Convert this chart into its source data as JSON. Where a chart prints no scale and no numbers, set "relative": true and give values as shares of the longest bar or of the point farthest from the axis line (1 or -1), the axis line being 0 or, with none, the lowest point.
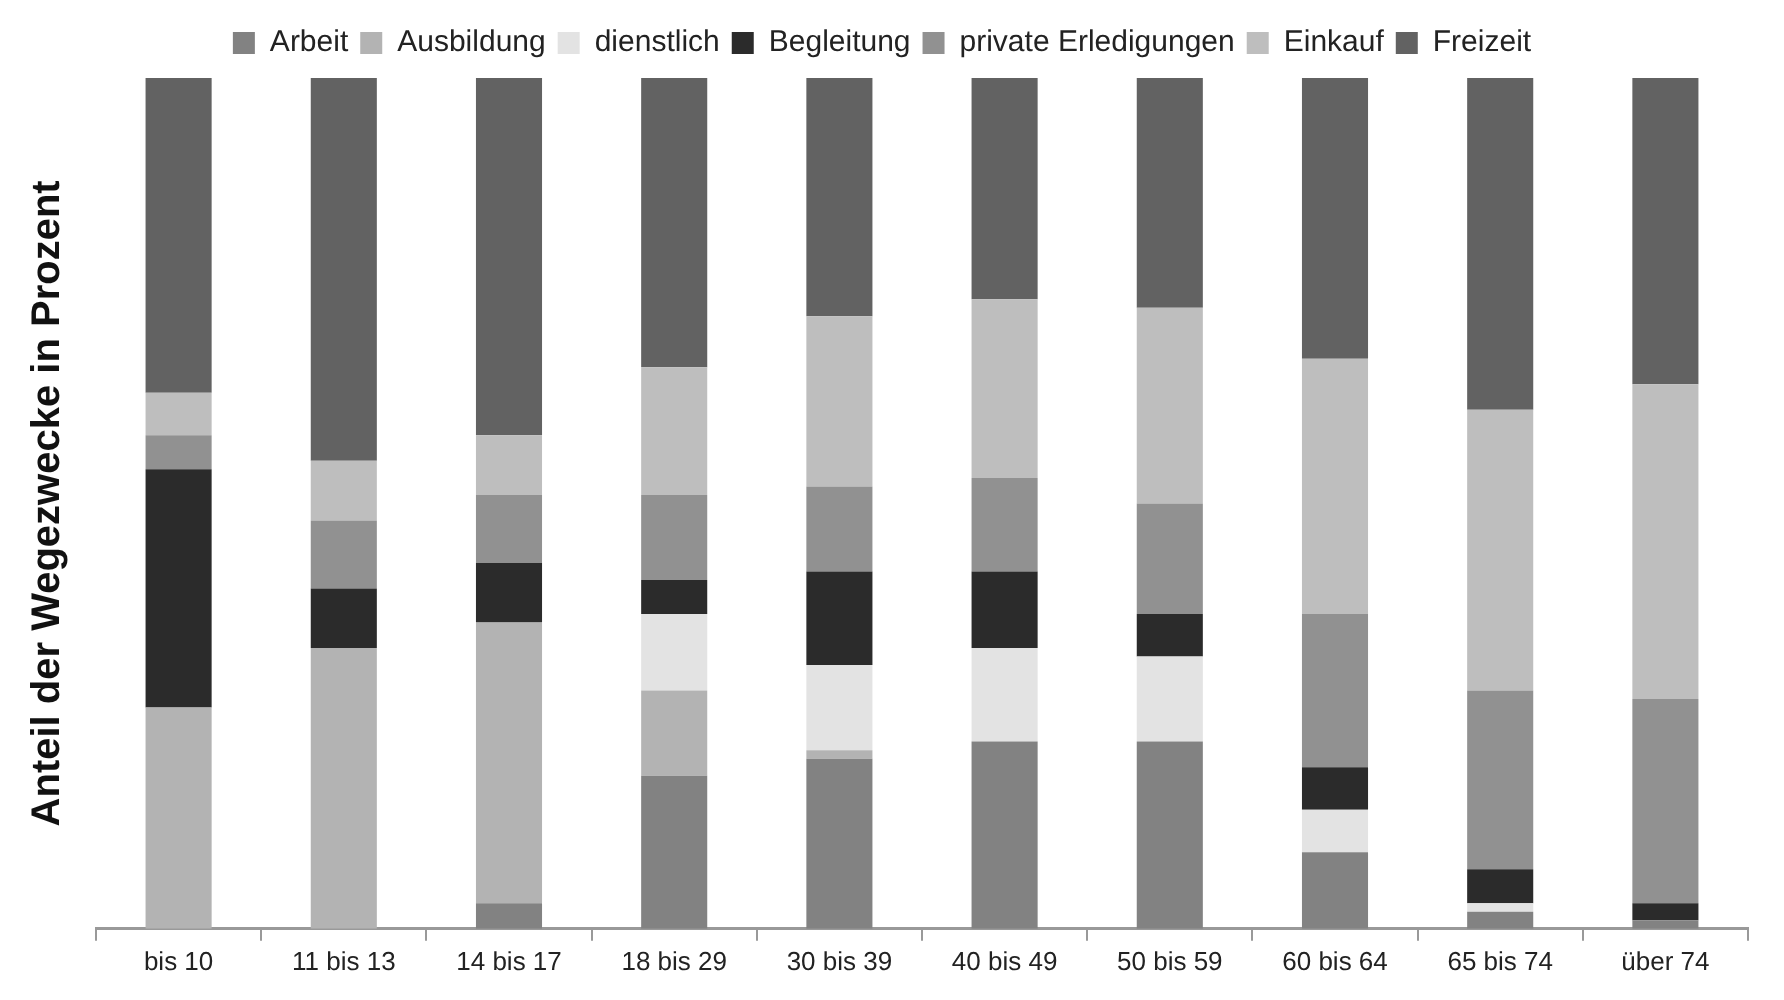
{
  "chart_data": {
    "type": "bar",
    "stacked": true,
    "relative": true,
    "legend": "top",
    "grid": false,
    "ylabel": "Anteil der Wegezwecke in Prozent",
    "categories": [
      "bis 10",
      "11 bis 13",
      "14 bis 17",
      "18 bis 29",
      "30 bis 39",
      "40 bis 49",
      "50 bis 59",
      "60 bis 64",
      "65 bis 74",
      "über 74"
    ],
    "series": [
      {
        "name": "Arbeit",
        "color": "#828282",
        "values": [
          0,
          0,
          0.03,
          0.18,
          0.2,
          0.22,
          0.22,
          0.09,
          0.02,
          0.01
        ]
      },
      {
        "name": "Ausbildung",
        "color": "#b3b3b3",
        "values": [
          0.26,
          0.33,
          0.33,
          0.1,
          0.01,
          0,
          0,
          0,
          0,
          0
        ]
      },
      {
        "name": "dienstlich",
        "color": "#e3e3e3",
        "values": [
          0,
          0,
          0,
          0.09,
          0.1,
          0.11,
          0.1,
          0.05,
          0.01,
          0
        ]
      },
      {
        "name": "Begleitung",
        "color": "#2b2b2b",
        "values": [
          0.28,
          0.07,
          0.07,
          0.04,
          0.11,
          0.09,
          0.05,
          0.05,
          0.04,
          0.02
        ]
      },
      {
        "name": "private Erledigungen",
        "color": "#919191",
        "values": [
          0.04,
          0.08,
          0.08,
          0.1,
          0.1,
          0.11,
          0.13,
          0.18,
          0.21,
          0.24
        ]
      },
      {
        "name": "Einkauf",
        "color": "#bebebe",
        "values": [
          0.05,
          0.07,
          0.07,
          0.15,
          0.2,
          0.21,
          0.23,
          0.3,
          0.33,
          0.37
        ]
      },
      {
        "name": "Freizeit",
        "color": "#626262",
        "values": [
          0.37,
          0.45,
          0.42,
          0.34,
          0.28,
          0.26,
          0.27,
          0.33,
          0.39,
          0.36
        ]
      }
    ]
  }
}
